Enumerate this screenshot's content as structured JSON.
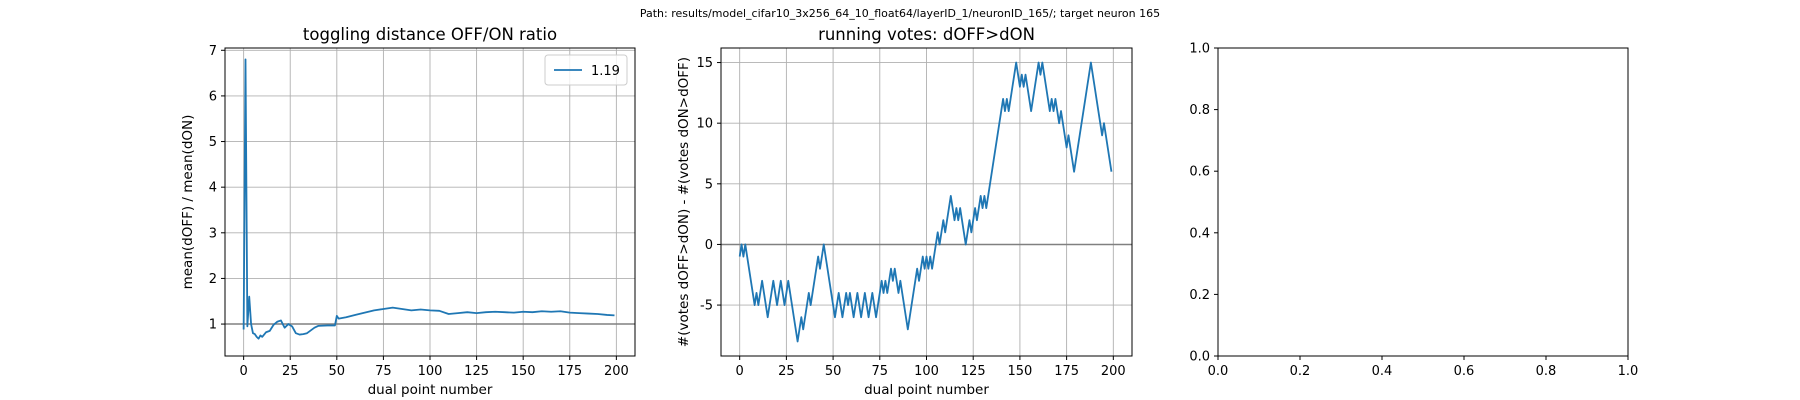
{
  "suptitle": "Path: results/model_cifar10_3x256_64_10_float64/layerID_1/neuronID_165/; target neuron 165",
  "chart_data": [
    {
      "type": "line",
      "title": "toggling distance OFF/ON ratio",
      "xlabel": "dual point number",
      "ylabel": "mean(dOFF) / mean(dON)",
      "xlim": [
        -10,
        210
      ],
      "ylim": [
        0.3,
        7.05
      ],
      "xticks": [
        0,
        25,
        50,
        75,
        100,
        125,
        150,
        175,
        200
      ],
      "yticks": [
        1,
        2,
        3,
        4,
        5,
        6,
        7
      ],
      "grid": true,
      "legend": {
        "placement": "top-right",
        "entries": [
          "1.19"
        ]
      },
      "hline": 1,
      "series": [
        {
          "name": "1.19",
          "color": "#1f77b4",
          "x": [
            0,
            1,
            2,
            3,
            4,
            5,
            6,
            7,
            8,
            9,
            10,
            12,
            14,
            16,
            18,
            20,
            22,
            24,
            26,
            28,
            30,
            32,
            34,
            36,
            38,
            40,
            45,
            49,
            50,
            51,
            55,
            60,
            65,
            70,
            75,
            80,
            85,
            90,
            95,
            100,
            105,
            110,
            115,
            120,
            125,
            130,
            135,
            140,
            145,
            150,
            155,
            160,
            165,
            170,
            175,
            180,
            185,
            190,
            195,
            199
          ],
          "y": [
            0.88,
            6.8,
            0.95,
            1.6,
            1.0,
            0.8,
            0.78,
            0.72,
            0.68,
            0.75,
            0.72,
            0.82,
            0.85,
            0.98,
            1.05,
            1.08,
            0.92,
            1.0,
            0.95,
            0.8,
            0.77,
            0.78,
            0.8,
            0.86,
            0.92,
            0.96,
            0.97,
            0.97,
            1.18,
            1.12,
            1.15,
            1.2,
            1.25,
            1.3,
            1.33,
            1.36,
            1.33,
            1.3,
            1.32,
            1.3,
            1.29,
            1.22,
            1.24,
            1.26,
            1.24,
            1.26,
            1.27,
            1.26,
            1.25,
            1.27,
            1.26,
            1.28,
            1.27,
            1.28,
            1.25,
            1.24,
            1.23,
            1.22,
            1.2,
            1.19
          ]
        }
      ]
    },
    {
      "type": "line",
      "title": "running votes: dOFF>dON",
      "xlabel": "dual point number",
      "ylabel": "#(votes dOFF>dON) - #(votes dON>dOFF)",
      "xlim": [
        -10,
        210
      ],
      "ylim": [
        -9.2,
        16.2
      ],
      "xticks": [
        0,
        25,
        50,
        75,
        100,
        125,
        150,
        175,
        200
      ],
      "yticks": [
        -5,
        0,
        5,
        10,
        15
      ],
      "grid": true,
      "hline": 0,
      "series": [
        {
          "name": "",
          "color": "#1f77b4",
          "x": [
            0,
            1,
            2,
            3,
            4,
            5,
            6,
            7,
            8,
            9,
            10,
            11,
            12,
            13,
            14,
            15,
            16,
            17,
            18,
            19,
            20,
            21,
            22,
            23,
            24,
            25,
            26,
            27,
            28,
            29,
            30,
            31,
            32,
            33,
            34,
            35,
            36,
            37,
            38,
            39,
            40,
            41,
            42,
            43,
            44,
            45,
            46,
            47,
            48,
            49,
            50,
            51,
            52,
            53,
            54,
            55,
            56,
            57,
            58,
            59,
            60,
            61,
            62,
            63,
            64,
            65,
            66,
            67,
            68,
            69,
            70,
            71,
            72,
            73,
            74,
            75,
            76,
            77,
            78,
            79,
            80,
            81,
            82,
            83,
            84,
            85,
            86,
            87,
            88,
            89,
            90,
            91,
            92,
            93,
            94,
            95,
            96,
            97,
            98,
            99,
            100,
            101,
            102,
            103,
            104,
            105,
            106,
            107,
            108,
            109,
            110,
            111,
            112,
            113,
            114,
            115,
            116,
            117,
            118,
            119,
            120,
            121,
            122,
            123,
            124,
            125,
            126,
            127,
            128,
            129,
            130,
            131,
            132,
            133,
            134,
            135,
            136,
            137,
            138,
            139,
            140,
            141,
            142,
            143,
            144,
            145,
            146,
            147,
            148,
            149,
            150,
            151,
            152,
            153,
            154,
            155,
            156,
            157,
            158,
            159,
            160,
            161,
            162,
            163,
            164,
            165,
            166,
            167,
            168,
            169,
            170,
            171,
            172,
            173,
            174,
            175,
            176,
            177,
            178,
            179,
            180,
            181,
            182,
            183,
            184,
            185,
            186,
            187,
            188,
            189,
            190,
            191,
            192,
            193,
            194,
            195,
            196,
            197,
            198,
            199
          ],
          "y": [
            -1,
            0,
            -1,
            0,
            -1,
            -2,
            -3,
            -4,
            -5,
            -4,
            -5,
            -4,
            -3,
            -4,
            -5,
            -6,
            -5,
            -4,
            -3,
            -4,
            -5,
            -4,
            -3,
            -4,
            -5,
            -4,
            -3,
            -4,
            -5,
            -6,
            -7,
            -8,
            -7,
            -6,
            -7,
            -6,
            -5,
            -4,
            -5,
            -4,
            -3,
            -2,
            -1,
            -2,
            -1,
            0,
            -1,
            -2,
            -3,
            -4,
            -5,
            -6,
            -5,
            -4,
            -5,
            -6,
            -5,
            -4,
            -5,
            -4,
            -5,
            -6,
            -5,
            -4,
            -5,
            -6,
            -5,
            -4,
            -5,
            -6,
            -5,
            -4,
            -5,
            -6,
            -5,
            -4,
            -3,
            -4,
            -3,
            -4,
            -3,
            -2,
            -3,
            -2,
            -3,
            -4,
            -3,
            -4,
            -5,
            -6,
            -7,
            -6,
            -5,
            -4,
            -3,
            -2,
            -3,
            -2,
            -1,
            -2,
            -1,
            -2,
            -1,
            -2,
            -1,
            0,
            1,
            0,
            1,
            2,
            1,
            2,
            3,
            4,
            3,
            2,
            3,
            2,
            3,
            2,
            1,
            0,
            1,
            2,
            1,
            2,
            3,
            2,
            3,
            4,
            3,
            4,
            3,
            4,
            5,
            6,
            7,
            8,
            9,
            10,
            11,
            12,
            11,
            12,
            11,
            12,
            13,
            14,
            15,
            14,
            13,
            14,
            13,
            14,
            13,
            12,
            11,
            12,
            13,
            14,
            15,
            14,
            15,
            14,
            13,
            12,
            11,
            12,
            11,
            12,
            11,
            10,
            11,
            10,
            9,
            8,
            9,
            8,
            7,
            6,
            7,
            8,
            9,
            10,
            11,
            12,
            13,
            14,
            15,
            14,
            13,
            12,
            11,
            10,
            9,
            10,
            9,
            8,
            7,
            6
          ]
        }
      ]
    },
    {
      "type": "line",
      "title": "",
      "xlabel": "",
      "ylabel": "",
      "xlim": [
        0,
        1
      ],
      "ylim": [
        0,
        1
      ],
      "xticks": [
        0.0,
        0.2,
        0.4,
        0.6,
        0.8,
        1.0
      ],
      "yticks": [
        0.0,
        0.2,
        0.4,
        0.6,
        0.8,
        1.0
      ],
      "grid": false,
      "series": []
    }
  ]
}
